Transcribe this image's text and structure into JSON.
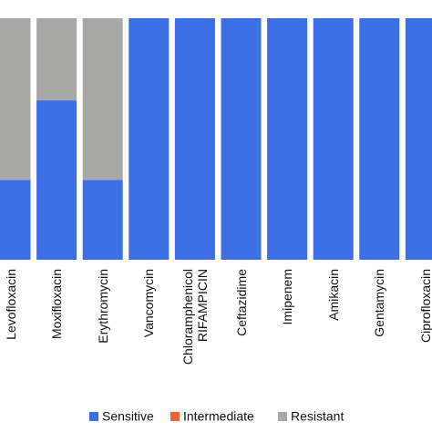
{
  "chart_data": {
    "type": "bar",
    "stacked": true,
    "categories": [
      "Levofloxacin",
      "Moxifloxacin",
      "Erythromycin",
      "Vancomycin",
      "Chloramphenicol\nRIFAMPICIN",
      "Ceftazidime",
      "Imipenem",
      "Amikacin",
      "Gentamycin",
      "Ciprofloxacin"
    ],
    "series": [
      {
        "name": "Sensitive",
        "color": "#3b6fe3",
        "values": [
          33,
          66,
          33,
          100,
          100,
          100,
          100,
          100,
          100,
          100
        ]
      },
      {
        "name": "Intermediate",
        "color": "#f0652f",
        "values": [
          0,
          0,
          0,
          0,
          0,
          0,
          0,
          0,
          0,
          0
        ]
      },
      {
        "name": "Resistant",
        "color": "#a8a9a7",
        "values": [
          67,
          34,
          67,
          0,
          0,
          0,
          0,
          0,
          0,
          0
        ]
      }
    ],
    "ylim": [
      0,
      100
    ],
    "legend": "bottom"
  }
}
